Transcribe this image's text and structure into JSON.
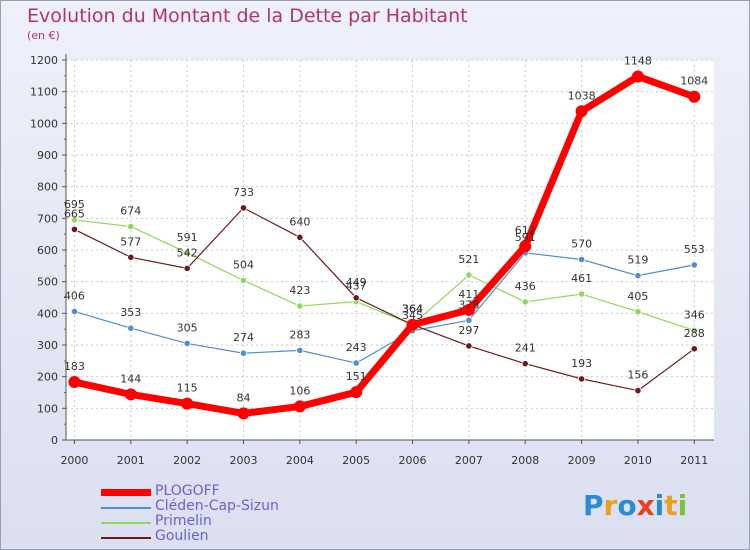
{
  "chart_data": {
    "type": "line",
    "title": "Evolution du Montant de la Dette par Habitant",
    "subtitle": "(en €)",
    "xlabel": "",
    "ylabel": "",
    "x": [
      "2000",
      "2001",
      "2002",
      "2003",
      "2004",
      "2005",
      "2006",
      "2007",
      "2008",
      "2009",
      "2010",
      "2011"
    ],
    "ylim": [
      0,
      1200
    ],
    "yticks": [
      0,
      100,
      200,
      300,
      400,
      500,
      600,
      700,
      800,
      900,
      1000,
      1100,
      1200
    ],
    "grid": true,
    "legend_position": "bottom-left",
    "series": [
      {
        "name": "PLOGOFF",
        "color": "#ff0000",
        "values": [
          183,
          144,
          115,
          84,
          106,
          151,
          364,
          411,
          612,
          1038,
          1148,
          1084
        ]
      },
      {
        "name": "Cléden-Cap-Sizun",
        "color": "#4f8fd0",
        "values": [
          406,
          353,
          305,
          274,
          283,
          243,
          345,
          378,
          591,
          570,
          519,
          553
        ]
      },
      {
        "name": "Primelin",
        "color": "#8fd860",
        "values": [
          695,
          674,
          591,
          504,
          423,
          437,
          364,
          521,
          436,
          461,
          405,
          346
        ]
      },
      {
        "name": "Goulien",
        "color": "#6e1a1a",
        "values": [
          665,
          577,
          542,
          733,
          640,
          449,
          364,
          297,
          241,
          193,
          156,
          288
        ]
      }
    ]
  },
  "logo": {
    "letters": [
      "P",
      "r",
      "o",
      "x",
      "i",
      "t",
      "i"
    ],
    "colors": [
      "#2a8ad4",
      "#e8a020",
      "#2a8ad4",
      "#e84020",
      "#2a8ad4",
      "#e8a020",
      "#80c040"
    ]
  }
}
